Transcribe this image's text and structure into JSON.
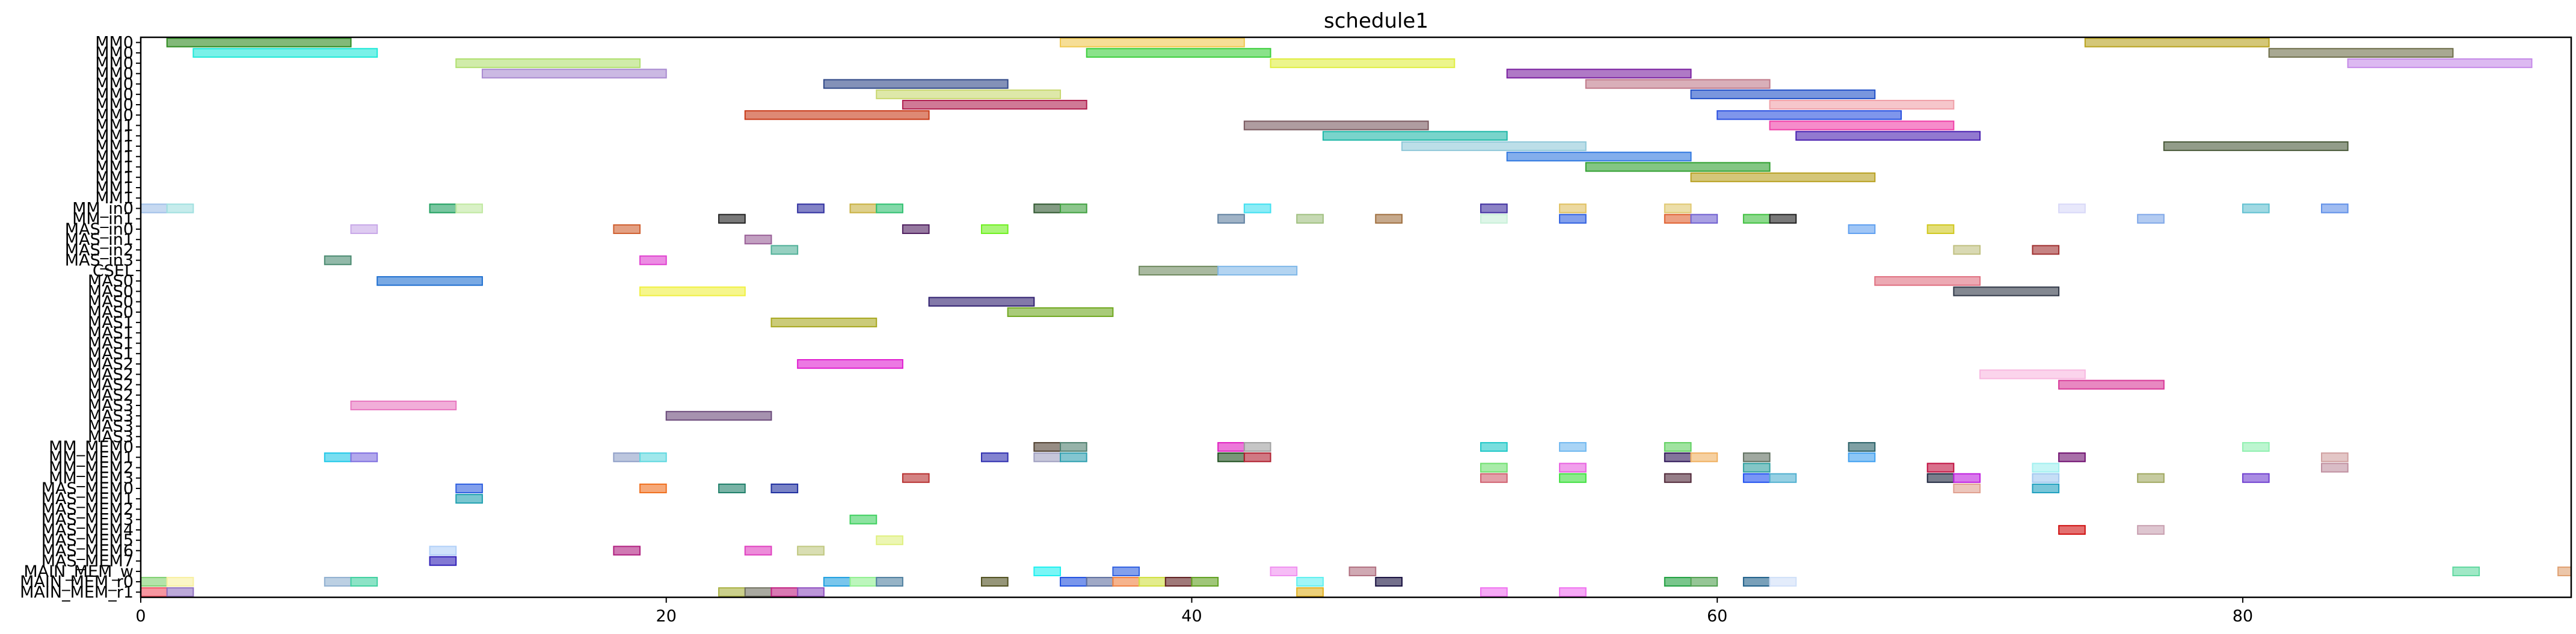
{
  "chart_data": {
    "type": "gantt",
    "title": "schedule1",
    "xlabel": "",
    "ylabel": "",
    "xlim": [
      0,
      92.5
    ],
    "x_ticks": [
      0,
      20,
      40,
      60,
      80
    ],
    "grid": false,
    "rows": [
      "MM0",
      "MM0",
      "MM0",
      "MM0",
      "MM0",
      "MM0",
      "MM0",
      "MM0",
      "MM1",
      "MM1",
      "MM1",
      "MM1",
      "MM1",
      "MM1",
      "MM1",
      "MM1",
      "MM_in0",
      "MM_in1",
      "MAS_in0",
      "MAS_in1",
      "MAS_in2",
      "MAS_in3",
      "CSEL",
      "MAS0",
      "MAS0",
      "MAS0",
      "MAS0",
      "MAS1",
      "MAS1",
      "MAS1",
      "MAS1",
      "MAS2",
      "MAS2",
      "MAS2",
      "MAS2",
      "MAS3",
      "MAS3",
      "MAS3",
      "MAS3",
      "MM_MEM0",
      "MM_MEM1",
      "MM_MEM2",
      "MM_MEM3",
      "MAS_MEM0",
      "MAS_MEM1",
      "MAS_MEM2",
      "MAS_MEM3",
      "MAS_MEM4",
      "MAS_MEM5",
      "MAS_MEM6",
      "MAS_MEM7",
      "MAIN_MEM_w",
      "MAIN_MEM_r0",
      "MAIN_MEM_r1"
    ],
    "tasks": [
      {
        "row": 0,
        "start": 1,
        "end": 8,
        "color": "#2e8b20"
      },
      {
        "row": 0,
        "start": 35,
        "end": 42,
        "color": "#f0c850"
      },
      {
        "row": 0,
        "start": 74,
        "end": 81,
        "color": "#b8a21e"
      },
      {
        "row": 1,
        "start": 2,
        "end": 9,
        "color": "#20e8d8"
      },
      {
        "row": 1,
        "start": 36,
        "end": 43,
        "color": "#3ccf3c"
      },
      {
        "row": 1,
        "start": 81,
        "end": 88,
        "color": "#6e6e4a"
      },
      {
        "row": 2,
        "start": 12,
        "end": 19,
        "color": "#b0e070"
      },
      {
        "row": 2,
        "start": 43,
        "end": 50,
        "color": "#e0ee40"
      },
      {
        "row": 2,
        "start": 84,
        "end": 91,
        "color": "#c58ae8"
      },
      {
        "row": 3,
        "start": 13,
        "end": 20,
        "color": "#a98ad0"
      },
      {
        "row": 3,
        "start": 52,
        "end": 59,
        "color": "#7a20a0"
      },
      {
        "row": 4,
        "start": 26,
        "end": 33,
        "color": "#304888"
      },
      {
        "row": 4,
        "start": 55,
        "end": 62,
        "color": "#c07a8a"
      },
      {
        "row": 5,
        "start": 28,
        "end": 35,
        "color": "#c8d870"
      },
      {
        "row": 5,
        "start": 59,
        "end": 66,
        "color": "#2050c8"
      },
      {
        "row": 6,
        "start": 29,
        "end": 36,
        "color": "#b02050"
      },
      {
        "row": 6,
        "start": 62,
        "end": 69,
        "color": "#f0a0a8"
      },
      {
        "row": 7,
        "start": 23,
        "end": 30,
        "color": "#c83a18"
      },
      {
        "row": 7,
        "start": 60,
        "end": 67,
        "color": "#2a50e0"
      },
      {
        "row": 8,
        "start": 42,
        "end": 49,
        "color": "#7a5a60"
      },
      {
        "row": 8,
        "start": 62,
        "end": 69,
        "color": "#f040a8"
      },
      {
        "row": 9,
        "start": 45,
        "end": 52,
        "color": "#20b8a8"
      },
      {
        "row": 9,
        "start": 63,
        "end": 70,
        "color": "#4a20b0"
      },
      {
        "row": 10,
        "start": 48,
        "end": 55,
        "color": "#90c8d8"
      },
      {
        "row": 10,
        "start": 77,
        "end": 84,
        "color": "#4a5a3a"
      },
      {
        "row": 11,
        "start": 52,
        "end": 59,
        "color": "#3078e0"
      },
      {
        "row": 12,
        "start": 55,
        "end": 62,
        "color": "#30a030"
      },
      {
        "row": 13,
        "start": 59,
        "end": 66,
        "color": "#b8a020"
      },
      {
        "row": 16,
        "start": 0,
        "end": 1,
        "color": "#a0c0e8"
      },
      {
        "row": 16,
        "start": 1,
        "end": 2,
        "color": "#a0e0e0"
      },
      {
        "row": 16,
        "start": 11,
        "end": 12,
        "color": "#20a060"
      },
      {
        "row": 16,
        "start": 12,
        "end": 13,
        "color": "#c0e8a0"
      },
      {
        "row": 16,
        "start": 25,
        "end": 26,
        "color": "#3030a0"
      },
      {
        "row": 16,
        "start": 27,
        "end": 28,
        "color": "#c8b040"
      },
      {
        "row": 16,
        "start": 28,
        "end": 29,
        "color": "#30c070"
      },
      {
        "row": 16,
        "start": 34,
        "end": 35,
        "color": "#305830"
      },
      {
        "row": 16,
        "start": 35,
        "end": 36,
        "color": "#40a040"
      },
      {
        "row": 16,
        "start": 42,
        "end": 43,
        "color": "#40e0f0"
      },
      {
        "row": 16,
        "start": 51,
        "end": 52,
        "color": "#4030a0"
      },
      {
        "row": 16,
        "start": 54,
        "end": 55,
        "color": "#e0c060"
      },
      {
        "row": 16,
        "start": 58,
        "end": 59,
        "color": "#e0c870"
      },
      {
        "row": 16,
        "start": 73,
        "end": 74,
        "color": "#d8d8f8"
      },
      {
        "row": 16,
        "start": 80,
        "end": 81,
        "color": "#60c0d0"
      },
      {
        "row": 16,
        "start": 83,
        "end": 84,
        "color": "#6090e8"
      },
      {
        "row": 17,
        "start": 22,
        "end": 23,
        "color": "#202020"
      },
      {
        "row": 17,
        "start": 41,
        "end": 42,
        "color": "#6080a0"
      },
      {
        "row": 17,
        "start": 44,
        "end": 45,
        "color": "#a0c080"
      },
      {
        "row": 17,
        "start": 47,
        "end": 48,
        "color": "#a07040"
      },
      {
        "row": 17,
        "start": 51,
        "end": 52,
        "color": "#c8f0d8"
      },
      {
        "row": 17,
        "start": 54,
        "end": 55,
        "color": "#3060e0"
      },
      {
        "row": 17,
        "start": 58,
        "end": 59,
        "color": "#e06030"
      },
      {
        "row": 17,
        "start": 59,
        "end": 60,
        "color": "#7060d0"
      },
      {
        "row": 17,
        "start": 61,
        "end": 62,
        "color": "#40c040"
      },
      {
        "row": 17,
        "start": 62,
        "end": 63,
        "color": "#202020"
      },
      {
        "row": 17,
        "start": 76,
        "end": 77,
        "color": "#80a8e8"
      },
      {
        "row": 18,
        "start": 8,
        "end": 9,
        "color": "#c8a8e8"
      },
      {
        "row": 18,
        "start": 18,
        "end": 19,
        "color": "#d06030"
      },
      {
        "row": 18,
        "start": 29,
        "end": 30,
        "color": "#502060"
      },
      {
        "row": 18,
        "start": 32,
        "end": 33,
        "color": "#70f020"
      },
      {
        "row": 18,
        "start": 65,
        "end": 66,
        "color": "#60a0f0"
      },
      {
        "row": 18,
        "start": 68,
        "end": 69,
        "color": "#d0c820"
      },
      {
        "row": 19,
        "start": 23,
        "end": 24,
        "color": "#9a6098"
      },
      {
        "row": 20,
        "start": 24,
        "end": 25,
        "color": "#50b098"
      },
      {
        "row": 20,
        "start": 69,
        "end": 70,
        "color": "#c0c080"
      },
      {
        "row": 20,
        "start": 72,
        "end": 73,
        "color": "#a03030"
      },
      {
        "row": 21,
        "start": 7,
        "end": 8,
        "color": "#4a8a70"
      },
      {
        "row": 21,
        "start": 19,
        "end": 20,
        "color": "#e040d0"
      },
      {
        "row": 22,
        "start": 38,
        "end": 41,
        "color": "#708a60"
      },
      {
        "row": 22,
        "start": 41,
        "end": 44,
        "color": "#80b8e8"
      },
      {
        "row": 23,
        "start": 9,
        "end": 13,
        "color": "#2070d0"
      },
      {
        "row": 23,
        "start": 66,
        "end": 70,
        "color": "#e07080"
      },
      {
        "row": 24,
        "start": 19,
        "end": 23,
        "color": "#f0f040"
      },
      {
        "row": 24,
        "start": 69,
        "end": 73,
        "color": "#303848"
      },
      {
        "row": 25,
        "start": 30,
        "end": 34,
        "color": "#302070"
      },
      {
        "row": 26,
        "start": 33,
        "end": 37,
        "color": "#70a820"
      },
      {
        "row": 27,
        "start": 24,
        "end": 28,
        "color": "#a8a820"
      },
      {
        "row": 31,
        "start": 25,
        "end": 29,
        "color": "#e020d0"
      },
      {
        "row": 32,
        "start": 70,
        "end": 74,
        "color": "#f8b8e0"
      },
      {
        "row": 33,
        "start": 73,
        "end": 77,
        "color": "#d83898"
      },
      {
        "row": 35,
        "start": 8,
        "end": 12,
        "color": "#e878c0"
      },
      {
        "row": 36,
        "start": 20,
        "end": 24,
        "color": "#6a4a7a"
      },
      {
        "row": 39,
        "start": 34,
        "end": 35,
        "color": "#504030"
      },
      {
        "row": 39,
        "start": 35,
        "end": 36,
        "color": "#508070"
      },
      {
        "row": 39,
        "start": 41,
        "end": 42,
        "color": "#e020c0"
      },
      {
        "row": 39,
        "start": 42,
        "end": 43,
        "color": "#a0a0a0"
      },
      {
        "row": 39,
        "start": 51,
        "end": 52,
        "color": "#20c8c8"
      },
      {
        "row": 39,
        "start": 54,
        "end": 55,
        "color": "#70b8f0"
      },
      {
        "row": 39,
        "start": 58,
        "end": 59,
        "color": "#60d060"
      },
      {
        "row": 39,
        "start": 65,
        "end": 66,
        "color": "#2a6068"
      },
      {
        "row": 39,
        "start": 80,
        "end": 81,
        "color": "#90f0b0"
      },
      {
        "row": 40,
        "start": 7,
        "end": 8,
        "color": "#20c8e8"
      },
      {
        "row": 40,
        "start": 8,
        "end": 9,
        "color": "#8070e0"
      },
      {
        "row": 40,
        "start": 18,
        "end": 19,
        "color": "#90a0c8"
      },
      {
        "row": 40,
        "start": 19,
        "end": 20,
        "color": "#60d8e0"
      },
      {
        "row": 40,
        "start": 32,
        "end": 33,
        "color": "#3030b0"
      },
      {
        "row": 40,
        "start": 34,
        "end": 35,
        "color": "#a0a0c0"
      },
      {
        "row": 40,
        "start": 35,
        "end": 36,
        "color": "#30a0b0"
      },
      {
        "row": 40,
        "start": 41,
        "end": 42,
        "color": "#205020"
      },
      {
        "row": 40,
        "start": 42,
        "end": 43,
        "color": "#b02030"
      },
      {
        "row": 40,
        "start": 58,
        "end": 59,
        "color": "#301858"
      },
      {
        "row": 40,
        "start": 59,
        "end": 60,
        "color": "#f0b060"
      },
      {
        "row": 40,
        "start": 61,
        "end": 62,
        "color": "#607060"
      },
      {
        "row": 40,
        "start": 65,
        "end": 66,
        "color": "#40a0f0"
      },
      {
        "row": 40,
        "start": 73,
        "end": 74,
        "color": "#701070"
      },
      {
        "row": 40,
        "start": 83,
        "end": 84,
        "color": "#d0a0a0"
      },
      {
        "row": 41,
        "start": 51,
        "end": 52,
        "color": "#70e070"
      },
      {
        "row": 41,
        "start": 54,
        "end": 55,
        "color": "#e860e0"
      },
      {
        "row": 41,
        "start": 61,
        "end": 62,
        "color": "#30a0a0"
      },
      {
        "row": 41,
        "start": 68,
        "end": 69,
        "color": "#c01040"
      },
      {
        "row": 41,
        "start": 72,
        "end": 73,
        "color": "#a0f0f0"
      },
      {
        "row": 41,
        "start": 83,
        "end": 84,
        "color": "#c090a0"
      },
      {
        "row": 42,
        "start": 29,
        "end": 30,
        "color": "#b83030"
      },
      {
        "row": 42,
        "start": 51,
        "end": 52,
        "color": "#d06070"
      },
      {
        "row": 42,
        "start": 54,
        "end": 55,
        "color": "#40e040"
      },
      {
        "row": 42,
        "start": 58,
        "end": 59,
        "color": "#502838"
      },
      {
        "row": 42,
        "start": 61,
        "end": 62,
        "color": "#2050f0"
      },
      {
        "row": 42,
        "start": 62,
        "end": 63,
        "color": "#50b0d0"
      },
      {
        "row": 42,
        "start": 68,
        "end": 69,
        "color": "#202840"
      },
      {
        "row": 42,
        "start": 69,
        "end": 70,
        "color": "#c020e0"
      },
      {
        "row": 42,
        "start": 72,
        "end": 73,
        "color": "#a0c8f0"
      },
      {
        "row": 42,
        "start": 76,
        "end": 77,
        "color": "#a0a860"
      },
      {
        "row": 42,
        "start": 80,
        "end": 81,
        "color": "#7040d0"
      },
      {
        "row": 43,
        "start": 12,
        "end": 13,
        "color": "#3060e0"
      },
      {
        "row": 43,
        "start": 19,
        "end": 20,
        "color": "#f07020"
      },
      {
        "row": 43,
        "start": 22,
        "end": 23,
        "color": "#20806a"
      },
      {
        "row": 43,
        "start": 24,
        "end": 25,
        "color": "#2030a0"
      },
      {
        "row": 43,
        "start": 69,
        "end": 70,
        "color": "#e0a090"
      },
      {
        "row": 43,
        "start": 72,
        "end": 73,
        "color": "#20a0c0"
      },
      {
        "row": 44,
        "start": 12,
        "end": 13,
        "color": "#20a0b0"
      },
      {
        "row": 46,
        "start": 27,
        "end": 28,
        "color": "#40d060"
      },
      {
        "row": 47,
        "start": 73,
        "end": 74,
        "color": "#d01010"
      },
      {
        "row": 47,
        "start": 76,
        "end": 77,
        "color": "#c8a0b0"
      },
      {
        "row": 48,
        "start": 28,
        "end": 29,
        "color": "#e0f080"
      },
      {
        "row": 49,
        "start": 11,
        "end": 12,
        "color": "#b0d0f8"
      },
      {
        "row": 49,
        "start": 18,
        "end": 19,
        "color": "#b02080"
      },
      {
        "row": 49,
        "start": 23,
        "end": 24,
        "color": "#e040c0"
      },
      {
        "row": 49,
        "start": 25,
        "end": 26,
        "color": "#c0c880"
      },
      {
        "row": 50,
        "start": 11,
        "end": 12,
        "color": "#3020b8"
      },
      {
        "row": 51,
        "start": 34,
        "end": 35,
        "color": "#20f0f0"
      },
      {
        "row": 51,
        "start": 37,
        "end": 38,
        "color": "#3060e0"
      },
      {
        "row": 51,
        "start": 43,
        "end": 44,
        "color": "#f090f0"
      },
      {
        "row": 51,
        "start": 46,
        "end": 47,
        "color": "#b07080"
      },
      {
        "row": 51,
        "start": 88,
        "end": 89,
        "color": "#60d8a0"
      },
      {
        "row": 51,
        "start": 92,
        "end": 93,
        "color": "#e0a070"
      },
      {
        "row": 52,
        "start": 0,
        "end": 1,
        "color": "#80d070"
      },
      {
        "row": 52,
        "start": 1,
        "end": 2,
        "color": "#f8f0a0"
      },
      {
        "row": 52,
        "start": 7,
        "end": 8,
        "color": "#90b0d0"
      },
      {
        "row": 52,
        "start": 8,
        "end": 9,
        "color": "#40d0a0"
      },
      {
        "row": 52,
        "start": 35,
        "end": 36,
        "color": "#2050e0"
      },
      {
        "row": 52,
        "start": 36,
        "end": 37,
        "color": "#6070a0"
      },
      {
        "row": 52,
        "start": 37,
        "end": 38,
        "color": "#f08040"
      },
      {
        "row": 52,
        "start": 38,
        "end": 39,
        "color": "#d0e040"
      },
      {
        "row": 52,
        "start": 39,
        "end": 40,
        "color": "#602020"
      },
      {
        "row": 52,
        "start": 40,
        "end": 41,
        "color": "#60a020"
      },
      {
        "row": 52,
        "start": 44,
        "end": 45,
        "color": "#60f0f0"
      },
      {
        "row": 52,
        "start": 47,
        "end": 48,
        "color": "#181040"
      },
      {
        "row": 52,
        "start": 58,
        "end": 59,
        "color": "#20a040"
      },
      {
        "row": 52,
        "start": 59,
        "end": 60,
        "color": "#50a050"
      },
      {
        "row": 52,
        "start": 61,
        "end": 62,
        "color": "#20608a"
      },
      {
        "row": 52,
        "start": 62,
        "end": 63,
        "color": "#d0e0f8"
      },
      {
        "row": 52,
        "start": 26,
        "end": 27,
        "color": "#20a0e0"
      },
      {
        "row": 52,
        "start": 27,
        "end": 28,
        "color": "#90f090"
      },
      {
        "row": 52,
        "start": 28,
        "end": 29,
        "color": "#5080a0"
      },
      {
        "row": 52,
        "start": 32,
        "end": 33,
        "color": "#505020"
      },
      {
        "row": 53,
        "start": 0,
        "end": 1,
        "color": "#f05060"
      },
      {
        "row": 53,
        "start": 1,
        "end": 2,
        "color": "#9070c0"
      },
      {
        "row": 53,
        "start": 22,
        "end": 23,
        "color": "#a8b040"
      },
      {
        "row": 53,
        "start": 23,
        "end": 24,
        "color": "#707060"
      },
      {
        "row": 53,
        "start": 24,
        "end": 25,
        "color": "#c02080"
      },
      {
        "row": 53,
        "start": 25,
        "end": 26,
        "color": "#9050c0"
      },
      {
        "row": 53,
        "start": 44,
        "end": 45,
        "color": "#e0b020"
      },
      {
        "row": 53,
        "start": 51,
        "end": 52,
        "color": "#f070f0"
      },
      {
        "row": 53,
        "start": 54,
        "end": 55,
        "color": "#f070f0"
      }
    ]
  }
}
